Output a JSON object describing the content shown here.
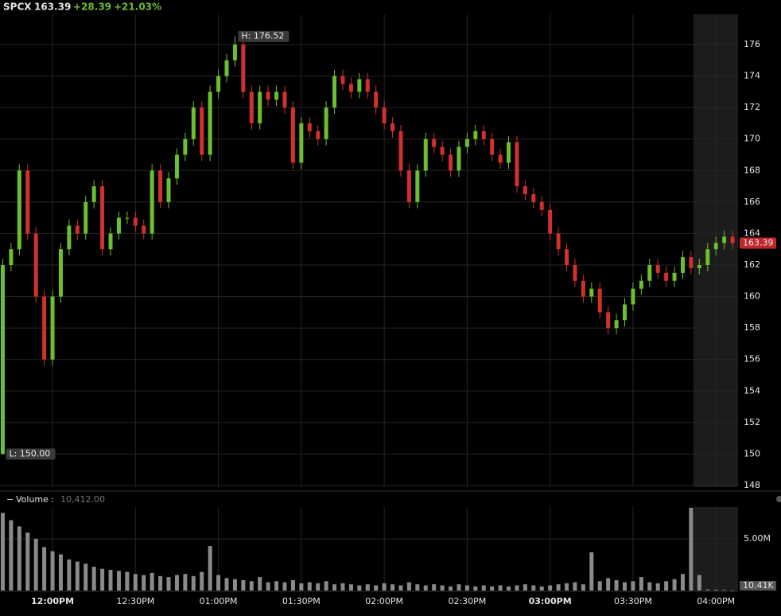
{
  "chart_data": {
    "type": "candlestick",
    "symbol": "SPCX",
    "change": "+28.39",
    "change_pct": "+21.03%",
    "high_annotation": "H: 176.52",
    "low_annotation": "L: 150.00",
    "up_color": "#6cbf2e",
    "down_color": "#d0312d",
    "volume_color": "#8a8a8a",
    "x": [
      702,
      705,
      708,
      711,
      714,
      717,
      720,
      723,
      726,
      729,
      732,
      735,
      738,
      741,
      744,
      747,
      750,
      753,
      756,
      759,
      762,
      765,
      768,
      771,
      774,
      777,
      780,
      783,
      786,
      789,
      792,
      795,
      798,
      801,
      804,
      807,
      810,
      813,
      816,
      819,
      822,
      825,
      828,
      831,
      834,
      837,
      840,
      843,
      846,
      849,
      852,
      855,
      858,
      861,
      864,
      867,
      870,
      873,
      876,
      879,
      882,
      885,
      888,
      891,
      894,
      897,
      900,
      903,
      906,
      909,
      912,
      915,
      918,
      921,
      924,
      927,
      930,
      933,
      936,
      939,
      942,
      945,
      948,
      951,
      954,
      957,
      960,
      963,
      966
    ],
    "open": [
      150,
      162,
      163,
      168,
      164,
      160,
      156,
      160,
      163,
      164.5,
      164,
      166,
      167,
      163,
      164,
      165,
      165,
      164.5,
      164,
      168,
      166,
      167.5,
      169,
      170,
      172,
      169,
      173,
      174,
      175,
      176,
      173,
      171,
      173,
      172.5,
      173,
      172,
      168.5,
      171,
      170.5,
      170,
      172,
      174,
      173.5,
      173,
      173.8,
      173,
      172,
      171,
      170.5,
      168,
      166,
      168,
      170,
      169.5,
      169,
      168,
      169.5,
      170,
      170.5,
      170,
      169,
      168.5,
      169.8,
      167,
      166.5,
      166,
      165.5,
      164,
      163,
      162,
      161,
      160,
      160.5,
      159,
      158,
      158.5,
      159.5,
      160.5,
      161,
      162,
      161.5,
      161,
      161.5,
      162.5,
      161.8,
      162,
      163,
      163.4,
      163.8
    ],
    "high": [
      162.4,
      163.4,
      168.4,
      168.4,
      164.4,
      160.4,
      160.4,
      163.4,
      164.9,
      164.9,
      166.4,
      167.4,
      167.4,
      164.4,
      165.4,
      165.4,
      165.4,
      164.9,
      168.4,
      168.4,
      167.9,
      169.4,
      170.4,
      172.4,
      172.4,
      173.4,
      174.4,
      175.4,
      176.52,
      176.4,
      173.4,
      173.4,
      173.4,
      173.4,
      173.4,
      172.4,
      171.4,
      171.4,
      170.9,
      172.4,
      174.4,
      174.4,
      173.9,
      174.2,
      174.2,
      173.4,
      172.4,
      171.4,
      170.9,
      168.4,
      168.4,
      170.4,
      170.4,
      169.9,
      169.4,
      169.9,
      170.4,
      170.9,
      170.9,
      170.4,
      169.4,
      170.2,
      170.2,
      167.4,
      166.9,
      166.4,
      165.9,
      164.4,
      163.4,
      162.4,
      161.4,
      160.9,
      160.9,
      159.4,
      158.9,
      159.9,
      160.9,
      161.4,
      162.4,
      162.4,
      161.9,
      161.9,
      162.9,
      162.9,
      162.4,
      163.4,
      163.8,
      164.2,
      164.2
    ],
    "low": [
      150,
      161.6,
      162.6,
      163.6,
      159.6,
      155.6,
      155.6,
      159.6,
      162.6,
      163.6,
      163.6,
      165.6,
      162.6,
      162.6,
      163.6,
      164.6,
      164.1,
      163.6,
      163.6,
      165.6,
      165.6,
      167.1,
      168.6,
      169.6,
      168.6,
      168.6,
      172.6,
      173.6,
      174.6,
      172.6,
      170.6,
      170.6,
      172.1,
      172.1,
      171.6,
      168.1,
      168.1,
      170.1,
      169.6,
      169.6,
      171.6,
      173.1,
      172.6,
      172.6,
      172.6,
      171.6,
      170.6,
      170.1,
      167.6,
      165.6,
      165.6,
      167.6,
      169.1,
      168.6,
      167.6,
      167.6,
      169.1,
      169.6,
      169.6,
      168.6,
      168.1,
      168.1,
      166.6,
      166.1,
      165.6,
      165.1,
      163.6,
      162.6,
      161.6,
      160.6,
      159.6,
      159.6,
      158.6,
      157.6,
      157.6,
      158.1,
      159.1,
      160.1,
      160.6,
      161.1,
      160.6,
      160.6,
      161.1,
      161.4,
      161.4,
      161.6,
      162.6,
      163,
      162.99
    ],
    "close": [
      162,
      163,
      168,
      164,
      160,
      156,
      160,
      163,
      164.5,
      164,
      166,
      167,
      163,
      164,
      165,
      165,
      164.5,
      164,
      168,
      166,
      167.5,
      169,
      170,
      172,
      169,
      173,
      174,
      175,
      176,
      173,
      171,
      173,
      172.5,
      173,
      172,
      168.5,
      171,
      170.5,
      170,
      172,
      174,
      173.5,
      173,
      173.8,
      173,
      172,
      171,
      170.5,
      168,
      166,
      168,
      170,
      169.5,
      169,
      168,
      169.5,
      170,
      170.5,
      170,
      169,
      168.5,
      169.8,
      167,
      166.5,
      166,
      165.5,
      164,
      163,
      162,
      161,
      160,
      160.5,
      159,
      158,
      158.5,
      159.5,
      160.5,
      161,
      162,
      161.5,
      161,
      161.5,
      162.5,
      161.8,
      162,
      163,
      163.4,
      163.8,
      163.39
    ],
    "volume_title": "Volume",
    "volume": [
      7500000,
      6800000,
      6200000,
      5600000,
      5000000,
      4200000,
      3800000,
      3500000,
      3000000,
      2800000,
      2600000,
      2300000,
      2100000,
      2000000,
      1900000,
      1800000,
      1600000,
      1500000,
      1700000,
      1400000,
      1300000,
      1500000,
      1600000,
      1400000,
      1800000,
      4300000,
      1500000,
      1200000,
      1100000,
      1000000,
      900000,
      1300000,
      800000,
      900000,
      800000,
      1000000,
      700000,
      800000,
      700000,
      900000,
      600000,
      700000,
      600000,
      500000,
      600000,
      500000,
      700000,
      600000,
      500000,
      800000,
      600000,
      500000,
      600000,
      500000,
      400000,
      600000,
      500000,
      400000,
      500000,
      400000,
      500000,
      400000,
      500000,
      600000,
      500000,
      400000,
      500000,
      600000,
      700000,
      800000,
      600000,
      3700000,
      900000,
      1200000,
      1000000,
      800000,
      900000,
      1300000,
      800000,
      700000,
      900000,
      1100000,
      1600000,
      8000000,
      1500000,
      100000,
      80000,
      60000,
      10412
    ],
    "volume_last_label": "10,412.00",
    "volume_last_axis_label": "10.41K",
    "xlim": [
      701,
      968
    ],
    "xticks": [
      {
        "value": 720,
        "label": "12:00PM"
      },
      {
        "value": 750,
        "label": "12:30PM"
      },
      {
        "value": 780,
        "label": "01:00PM"
      },
      {
        "value": 810,
        "label": "01:30PM"
      },
      {
        "value": 840,
        "label": "02:00PM"
      },
      {
        "value": 870,
        "label": "02:30PM"
      },
      {
        "value": 900,
        "label": "03:00PM"
      },
      {
        "value": 930,
        "label": "03:30PM"
      },
      {
        "value": 960,
        "label": "04:00PM"
      }
    ],
    "bold_xticks": [
      720,
      900
    ],
    "ylim": [
      147.9,
      177.92
    ],
    "yticks": [
      148,
      150,
      152,
      154,
      156,
      158,
      160,
      162,
      164,
      166,
      168,
      170,
      172,
      174,
      176
    ],
    "volume_ylim": [
      0,
      8080000
    ],
    "volume_yticks": [
      {
        "value": 5000000,
        "label": "5.00M"
      }
    ],
    "grid": true
  }
}
